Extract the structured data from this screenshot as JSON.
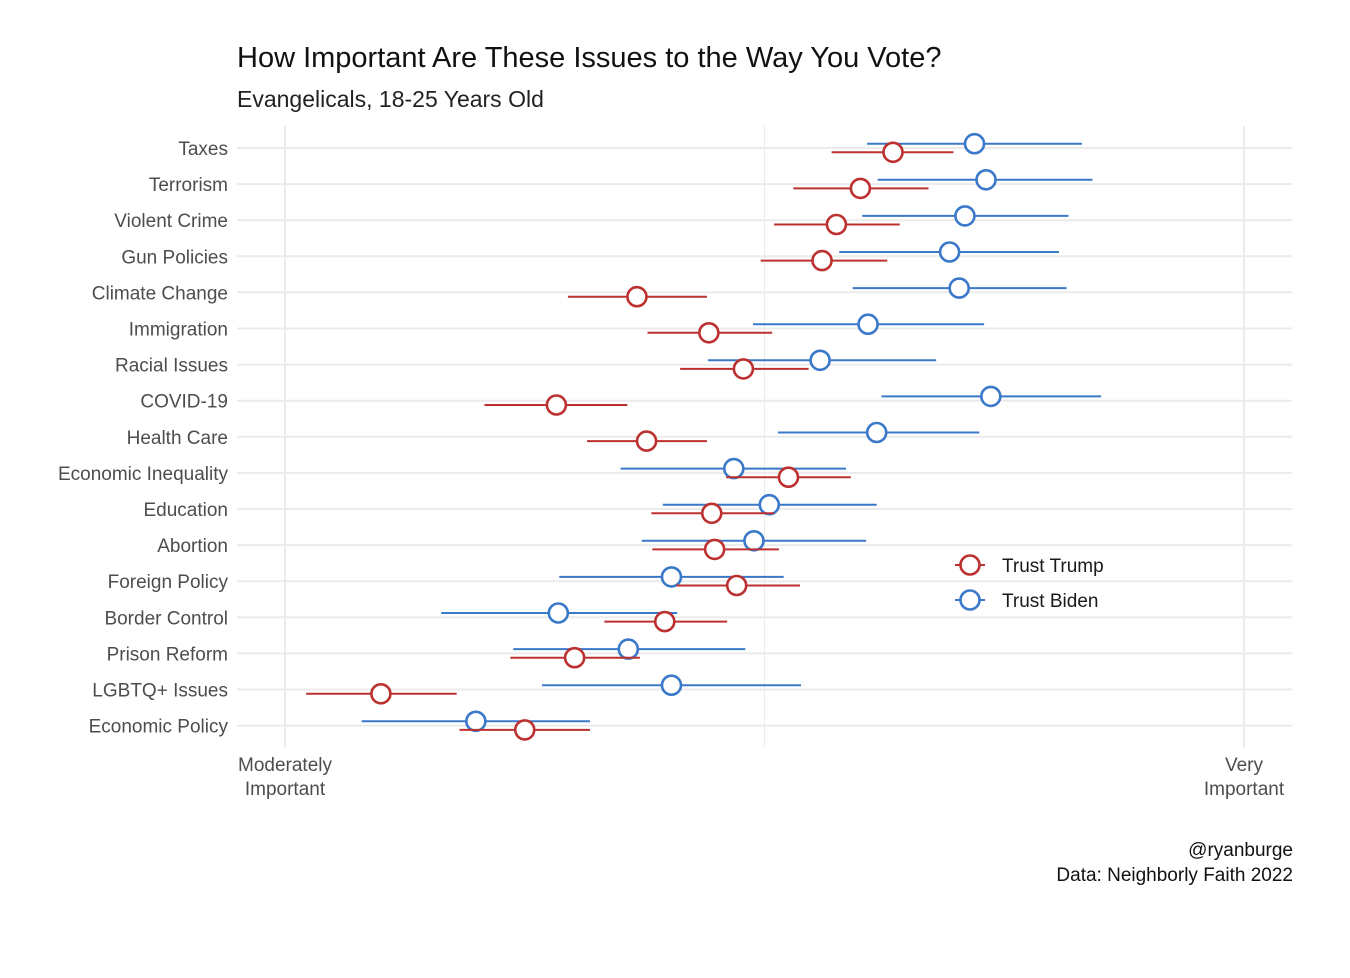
{
  "chart_data": {
    "type": "dot-interval",
    "title": "How Important Are These Issues to the Way You Vote?",
    "subtitle": "Evangelicals, 18-25 Years Old",
    "x_ticks": [
      {
        "value": 0,
        "label_lines": [
          "Moderately",
          "Important"
        ]
      },
      {
        "value": 1,
        "label_lines": [
          "Very",
          "Important"
        ]
      }
    ],
    "x_grid": [
      0,
      0.5,
      1
    ],
    "xlim": [
      -0.05,
      1.05
    ],
    "grid": true,
    "legend_position": "right",
    "categories": [
      "Taxes",
      "Terrorism",
      "Violent Crime",
      "Gun Policies",
      "Climate Change",
      "Immigration",
      "Racial Issues",
      "COVID-19",
      "Health Care",
      "Economic Inequality",
      "Education",
      "Abortion",
      "Foreign Policy",
      "Border Control",
      "Prison Reform",
      "LGBTQ+ Issues",
      "Economic Policy"
    ],
    "series": [
      {
        "name": "Trust Trump",
        "color": "#bd3030",
        "estimate": [
          0.634,
          0.6,
          0.575,
          0.56,
          0.367,
          0.442,
          0.478,
          0.283,
          0.377,
          0.525,
          0.445,
          0.448,
          0.471,
          0.396,
          0.302,
          0.1,
          0.25
        ],
        "low": [
          0.57,
          0.53,
          0.51,
          0.496,
          0.295,
          0.378,
          0.412,
          0.208,
          0.315,
          0.46,
          0.382,
          0.383,
          0.408,
          0.333,
          0.235,
          0.022,
          0.182
        ],
        "high": [
          0.697,
          0.671,
          0.641,
          0.628,
          0.44,
          0.508,
          0.546,
          0.357,
          0.44,
          0.59,
          0.51,
          0.515,
          0.537,
          0.461,
          0.37,
          0.179,
          0.318
        ]
      },
      {
        "name": "Trust Biden",
        "color": "#3a78c9",
        "estimate": [
          0.719,
          0.731,
          0.709,
          0.693,
          0.703,
          0.608,
          0.558,
          0.736,
          0.617,
          0.468,
          0.505,
          0.489,
          0.403,
          0.285,
          0.358,
          0.403,
          0.199
        ],
        "low": [
          0.607,
          0.618,
          0.602,
          0.578,
          0.592,
          0.488,
          0.441,
          0.622,
          0.514,
          0.35,
          0.394,
          0.372,
          0.286,
          0.163,
          0.238,
          0.268,
          0.08
        ],
        "high": [
          0.831,
          0.842,
          0.817,
          0.807,
          0.815,
          0.729,
          0.679,
          0.851,
          0.724,
          0.585,
          0.617,
          0.606,
          0.52,
          0.409,
          0.48,
          0.538,
          0.318
        ]
      }
    ]
  },
  "caption": {
    "handle": "@ryanburge",
    "source": "Data: Neighborly Faith 2022"
  }
}
